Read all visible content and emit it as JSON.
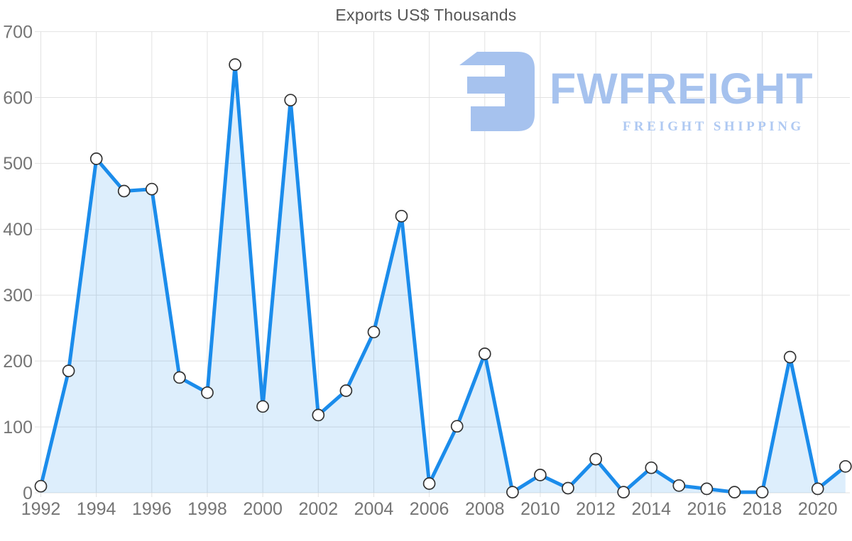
{
  "page": {
    "background": "#ffffff"
  },
  "chart_data": {
    "type": "area",
    "title": "Exports US$ Thousands",
    "series_name": "Exports US$ Thousands",
    "x": [
      1992,
      1993,
      1994,
      1995,
      1996,
      1997,
      1998,
      1999,
      2000,
      2001,
      2002,
      2003,
      2004,
      2005,
      2006,
      2007,
      2008,
      2009,
      2010,
      2011,
      2012,
      2013,
      2014,
      2015,
      2016,
      2017,
      2018,
      2019,
      2020,
      2021
    ],
    "values": [
      10,
      185,
      507,
      458,
      461,
      175,
      152,
      650,
      131,
      596,
      118,
      155,
      244,
      420,
      14,
      101,
      211,
      1,
      27,
      7,
      51,
      1,
      38,
      11,
      6,
      1,
      1,
      206,
      6,
      40
    ],
    "xlabel": "",
    "ylabel": "",
    "ylim": [
      0,
      700
    ],
    "y_ticks": [
      0,
      100,
      200,
      300,
      400,
      500,
      600,
      700
    ],
    "x_tick_labels": [
      "1992",
      "1994",
      "1996",
      "1998",
      "2000",
      "2002",
      "2004",
      "2006",
      "2008",
      "2010",
      "2012",
      "2014",
      "2016",
      "2018",
      "2020"
    ],
    "grid": true,
    "legend": "none",
    "colors": {
      "line": "#1b8ceb",
      "fill": "#1b8ceb",
      "fill_opacity": 0.15,
      "grid": "#e2e2e2",
      "tick_label": "#757575",
      "title": "#565656",
      "marker_fill": "#ffffff",
      "marker_stroke": "#333333"
    }
  },
  "watermark": {
    "brand": "FWFREIGHT",
    "tagline": "FREIGHT SHIPPING",
    "icon": "fwfreight-logo",
    "color": "#a6c2ee",
    "tagline_color": "#afc9f2"
  }
}
